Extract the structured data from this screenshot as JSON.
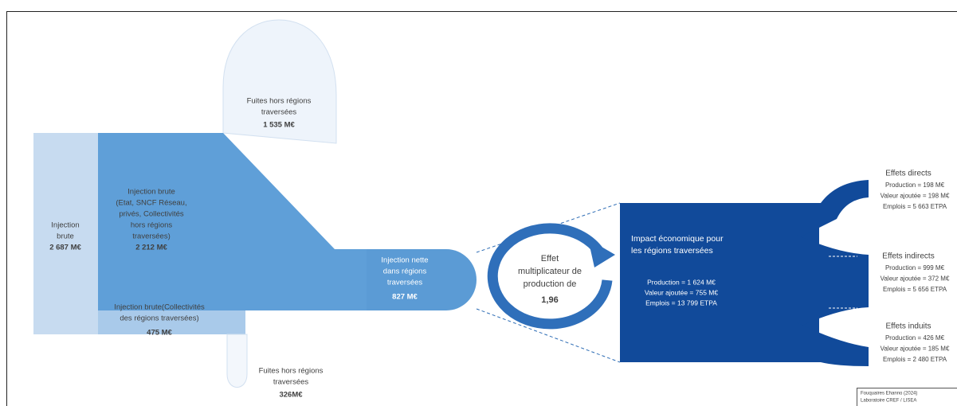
{
  "leak_top": {
    "lines": [
      "Fuites hors régions",
      "traversées"
    ],
    "value": "1 535 M€"
  },
  "gross_total": {
    "lines": [
      "Injection",
      "brute"
    ],
    "value": "2 687 M€"
  },
  "gross_outside": {
    "lines": [
      "Injection brute",
      "(Etat, SNCF Réseau,",
      "privés, Collectivités",
      "hors régions",
      "traversées)"
    ],
    "value": "2 212 M€"
  },
  "gross_regional": {
    "lines": [
      "Injection brute(Collectivités",
      "des régions traversées)"
    ],
    "value": "475 M€"
  },
  "leak_bottom": {
    "lines": [
      "Fuites hors régions",
      "traversées"
    ],
    "value": "326M€"
  },
  "net_injection": {
    "lines": [
      "Injection nette",
      "dans régions",
      "traversées"
    ],
    "value": "827 M€"
  },
  "multiplier": {
    "lines": [
      "Effet",
      "multiplicateur de",
      "production de"
    ],
    "value": "1,96"
  },
  "impact": {
    "title_lines": [
      "Impact économique pour",
      "les régions traversées"
    ],
    "lines": [
      "Production = 1 624 M€",
      "Valeur ajoutée = 755 M€",
      "Emplois = 13 799 ETPA"
    ]
  },
  "effects": [
    {
      "title": "Effets directs",
      "lines": [
        "Production = 198 M€",
        "Valeur ajoutée = 198 M€",
        "Emplois = 5 663 ETPA"
      ]
    },
    {
      "title": "Effets indirects",
      "lines": [
        "Production = 999 M€",
        "Valeur ajoutée = 372 M€",
        "Emplois = 5 656 ETPA"
      ]
    },
    {
      "title": "Effets induits",
      "lines": [
        "Production = 426 M€",
        "Valeur ajoutée = 185 M€",
        "Emplois = 2 480 ETPA"
      ]
    }
  ],
  "source": [
    "Fouquaires Ehanno (2024)",
    "Laboratoire CREF / LISEA"
  ]
}
